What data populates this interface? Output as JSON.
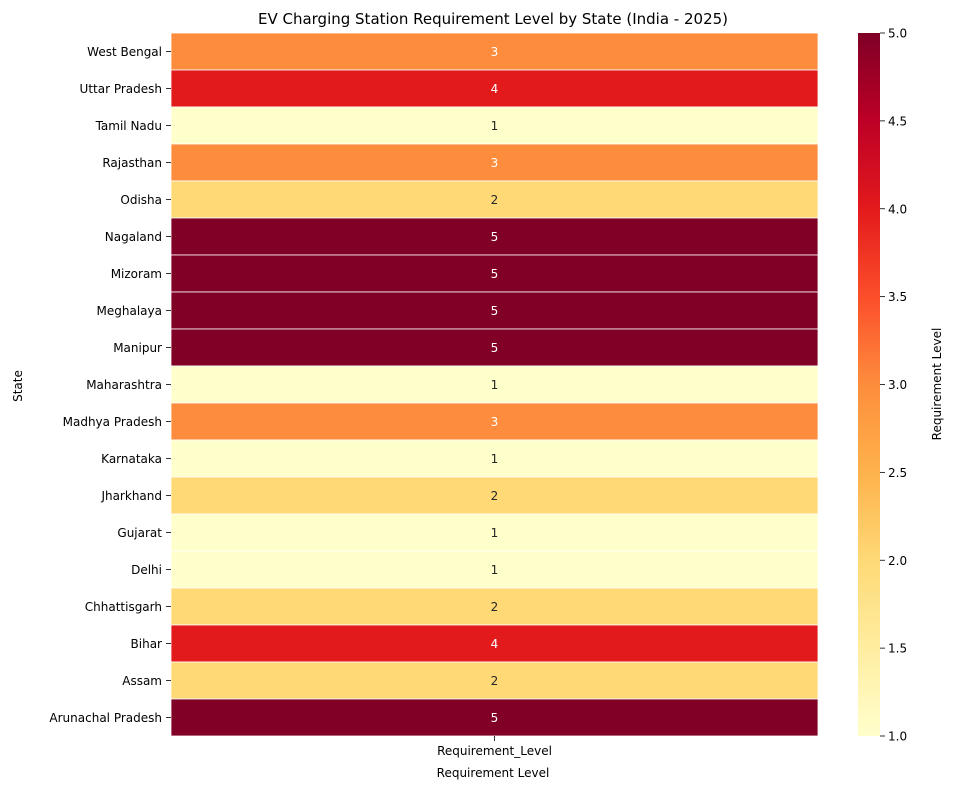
{
  "chart_data": {
    "type": "heatmap",
    "title": "EV Charging Station Requirement Level by State (India - 2025)",
    "xlabel": "Requirement Level",
    "ylabel": "State",
    "x_categories": [
      "Requirement_Level"
    ],
    "y_categories": [
      "West Bengal",
      "Uttar Pradesh",
      "Tamil Nadu",
      "Rajasthan",
      "Odisha",
      "Nagaland",
      "Mizoram",
      "Meghalaya",
      "Manipur",
      "Maharashtra",
      "Madhya Pradesh",
      "Karnataka",
      "Jharkhand",
      "Gujarat",
      "Delhi",
      "Chhattisgarh",
      "Bihar",
      "Assam",
      "Arunachal Pradesh"
    ],
    "values": [
      3,
      4,
      1,
      3,
      2,
      5,
      5,
      5,
      5,
      1,
      3,
      1,
      2,
      1,
      1,
      2,
      4,
      2,
      5
    ],
    "colorbar": {
      "label": "Requirement Level",
      "range": [
        1.0,
        5.0
      ],
      "ticks": [
        "1.0",
        "1.5",
        "2.0",
        "2.5",
        "3.0",
        "3.5",
        "4.0",
        "4.5",
        "5.0"
      ],
      "colormap": "YlOrRd",
      "level_colors": {
        "1": "#ffffcc",
        "2": "#fed976",
        "3": "#fd8d3c",
        "4": "#e31a1c",
        "5": "#800026"
      }
    },
    "annotations": true
  }
}
